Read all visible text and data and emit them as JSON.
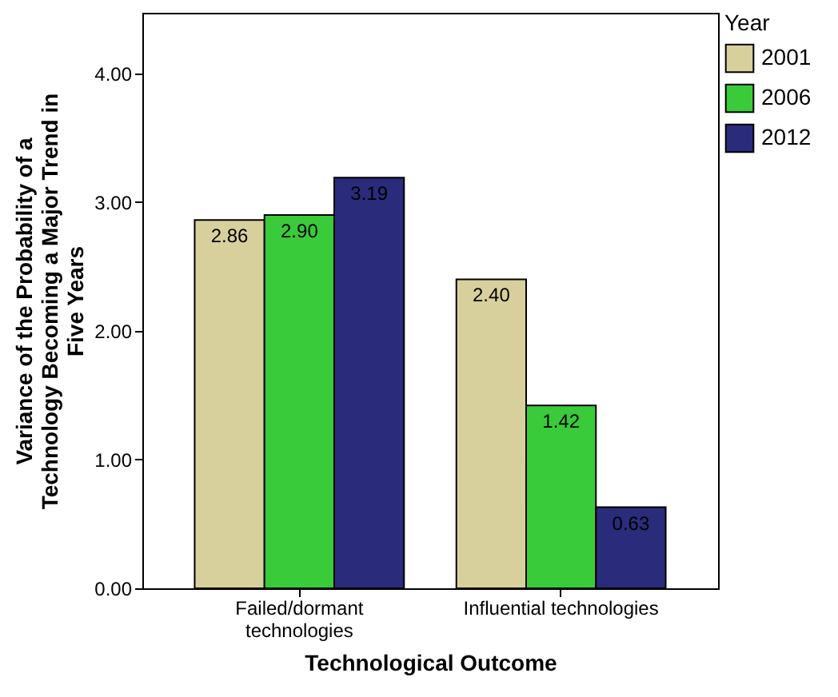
{
  "chart_data": {
    "type": "bar",
    "xlabel": "Technological Outcome",
    "ylabel": "Variance of the Probability of a Technology Becoming a Major Trend in Five Years",
    "legend_title": "Year",
    "categories": [
      "Failed/dormant technologies",
      "Influential technologies"
    ],
    "series": [
      {
        "name": "2001",
        "color": "#d8d09c",
        "values": [
          2.86,
          2.4
        ],
        "value_labels": [
          "2.86",
          "2.40"
        ]
      },
      {
        "name": "2006",
        "color": "#3acb3a",
        "values": [
          2.9,
          1.42
        ],
        "value_labels": [
          "2.90",
          "1.42"
        ]
      },
      {
        "name": "2012",
        "color": "#2b2b7b",
        "values": [
          3.19,
          0.63
        ],
        "value_labels": [
          "3.19",
          "0.63"
        ]
      }
    ],
    "ylim": [
      0,
      4.47
    ],
    "yticks": [
      {
        "value": 0,
        "label": "0.00"
      },
      {
        "value": 1,
        "label": "1.00"
      },
      {
        "value": 2,
        "label": "2.00"
      },
      {
        "value": 3,
        "label": "3.00"
      },
      {
        "value": 4,
        "label": "4.00"
      }
    ],
    "legend": "top right",
    "grid": false
  }
}
